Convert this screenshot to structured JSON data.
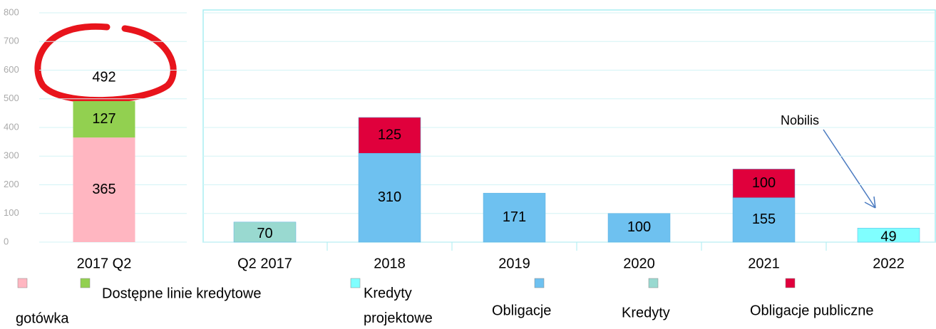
{
  "chart_data": [
    {
      "type": "bar",
      "stacked": true,
      "categories": [
        "2017 Q2"
      ],
      "series": [
        {
          "name": "gotówka",
          "color": "#ffb6c1",
          "values": [
            365
          ]
        },
        {
          "name": "Dostępne linie kredytowe",
          "color": "#92d050",
          "values": [
            127
          ]
        }
      ],
      "totals": [
        492
      ],
      "ylim": [
        0,
        800
      ],
      "yticks": [
        0,
        100,
        200,
        300,
        400,
        500,
        600,
        700,
        800
      ],
      "grid": true
    },
    {
      "type": "bar",
      "stacked": true,
      "categories": [
        "Q2 2017",
        "2018",
        "2019",
        "2020",
        "2021",
        "2022"
      ],
      "series": [
        {
          "name": "Kredyty projektowe",
          "color": "#80ffff",
          "values": [
            null,
            null,
            null,
            null,
            null,
            49
          ]
        },
        {
          "name": "Obligacje",
          "color": "#6ec1f0",
          "values": [
            null,
            310,
            171,
            100,
            155,
            null
          ]
        },
        {
          "name": "Kredyty",
          "color": "#99d9d0",
          "values": [
            70,
            null,
            null,
            null,
            null,
            null
          ]
        },
        {
          "name": "Obligacje publiczne",
          "color": "#e0003c",
          "values": [
            null,
            125,
            null,
            null,
            100,
            null
          ]
        }
      ],
      "ylim": [
        0,
        800
      ],
      "grid": true,
      "annotation": "Nobilis"
    }
  ]
}
